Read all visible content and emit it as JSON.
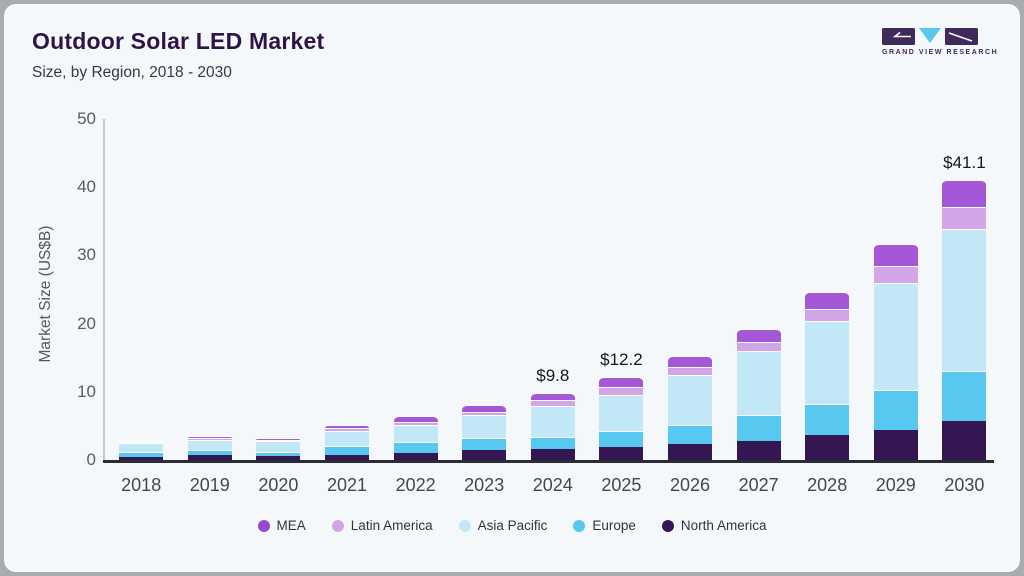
{
  "header": {
    "title": "Outdoor Solar LED Market",
    "subtitle": "Size, by Region, 2018 - 2030"
  },
  "logo": {
    "text": "GRAND VIEW RESEARCH",
    "block_color": "#3e2a5c",
    "triangle_color": "#5bc7ec"
  },
  "chart_data": {
    "type": "bar",
    "stacked": true,
    "title": "Outdoor Solar LED Market",
    "subtitle": "Size, by Region, 2018 - 2030",
    "xlabel": "",
    "ylabel": "Market Size (US$B)",
    "ylim": [
      0,
      50
    ],
    "yticks": [
      0,
      10,
      20,
      30,
      40,
      50
    ],
    "grid": false,
    "legend_position": "bottom",
    "categories": [
      "2018",
      "2019",
      "2020",
      "2021",
      "2022",
      "2023",
      "2024",
      "2025",
      "2026",
      "2027",
      "2028",
      "2029",
      "2030"
    ],
    "series": [
      {
        "name": "North America",
        "color": "#341652",
        "values": [
          0.5,
          0.7,
          0.65,
          0.8,
          1.1,
          1.4,
          1.6,
          1.9,
          2.4,
          2.8,
          3.7,
          4.4,
          5.7
        ]
      },
      {
        "name": "Europe",
        "color": "#58c8f0",
        "values": [
          0.7,
          0.7,
          0.6,
          1.2,
          1.5,
          1.8,
          1.8,
          2.3,
          2.8,
          3.8,
          4.5,
          5.8,
          7.3
        ]
      },
      {
        "name": "Asia Pacific",
        "color": "#c2e7f6",
        "values": [
          1.3,
          1.6,
          1.6,
          2.3,
          2.6,
          3.4,
          4.5,
          5.4,
          7.2,
          9.4,
          12.2,
          15.8,
          20.9
        ]
      },
      {
        "name": "Latin America",
        "color": "#d2a5e7",
        "values": [
          0.1,
          0.2,
          0.15,
          0.35,
          0.4,
          0.4,
          0.9,
          1.1,
          1.2,
          1.3,
          1.8,
          2.5,
          3.2
        ]
      },
      {
        "name": "MEA",
        "color": "#a457d7",
        "values": [
          0.2,
          0.3,
          0.3,
          0.55,
          0.8,
          1.0,
          1.0,
          1.5,
          1.6,
          1.9,
          2.5,
          3.2,
          4.0
        ]
      }
    ],
    "value_labels": [
      {
        "category": "2024",
        "text": "$9.8"
      },
      {
        "category": "2025",
        "text": "$12.2"
      },
      {
        "category": "2030",
        "text": "$41.1"
      }
    ],
    "legend": [
      {
        "label": "MEA",
        "color": "#9b48d0"
      },
      {
        "label": "Latin America",
        "color": "#d2a5e7"
      },
      {
        "label": "Asia Pacific",
        "color": "#c2e7f6"
      },
      {
        "label": "Europe",
        "color": "#58c8f0"
      },
      {
        "label": "North America",
        "color": "#341652"
      }
    ]
  }
}
